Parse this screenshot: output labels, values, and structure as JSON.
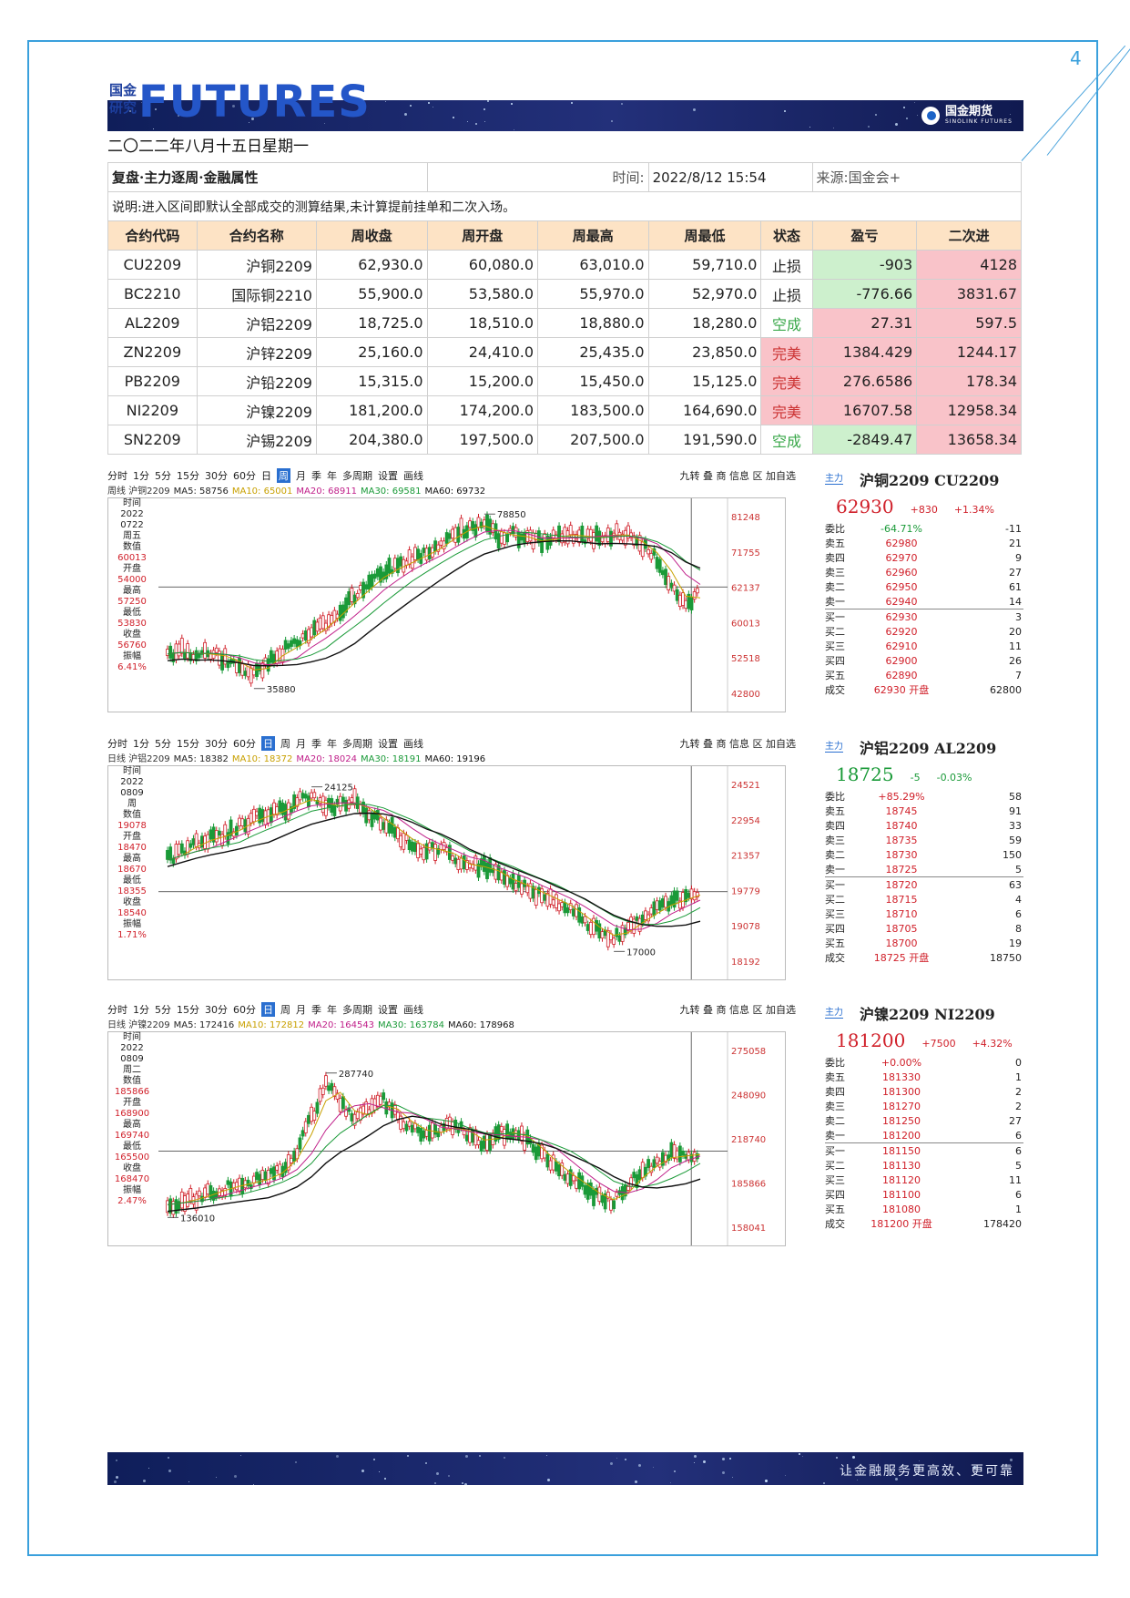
{
  "page_number": "4",
  "brand": {
    "cn_line1": "国金",
    "cn_line2": "研究",
    "en": "FUTURES",
    "logo_cn": "国金期货",
    "logo_en": "SINOLINK FUTURES"
  },
  "date": "二〇二二年八月十五日星期一",
  "review": {
    "title": "复盘·主力逐周·金融属性",
    "time_label": "时间:",
    "time_value": "2022/8/12 15:54",
    "source": "来源:国金会+",
    "note": "说明:进入区间即默认全部成交的测算结果,未计算提前挂单和二次入场。",
    "headers": [
      "合约代码",
      "合约名称",
      "周收盘",
      "周开盘",
      "周最高",
      "周最低",
      "状态",
      "盈亏",
      "二次进"
    ],
    "rows": [
      {
        "code": "CU2209",
        "name": "沪铜2209",
        "close": "62,930.0",
        "open": "60,080.0",
        "high": "63,010.0",
        "low": "59,710.0",
        "status": "止损",
        "pnl": "-903",
        "second": "4128"
      },
      {
        "code": "BC2210",
        "name": "国际铜2210",
        "close": "55,900.0",
        "open": "53,580.0",
        "high": "55,970.0",
        "low": "52,970.0",
        "status": "止损",
        "pnl": "-776.66",
        "second": "3831.67"
      },
      {
        "code": "AL2209",
        "name": "沪铝2209",
        "close": "18,725.0",
        "open": "18,510.0",
        "high": "18,880.0",
        "low": "18,280.0",
        "status": "空成",
        "pnl": "27.31",
        "second": "597.5"
      },
      {
        "code": "ZN2209",
        "name": "沪锌2209",
        "close": "25,160.0",
        "open": "24,410.0",
        "high": "25,435.0",
        "low": "23,850.0",
        "status": "完美",
        "pnl": "1384.429",
        "second": "1244.17"
      },
      {
        "code": "PB2209",
        "name": "沪铅2209",
        "close": "15,315.0",
        "open": "15,200.0",
        "high": "15,450.0",
        "low": "15,125.0",
        "status": "完美",
        "pnl": "276.6586",
        "second": "178.34"
      },
      {
        "code": "NI2209",
        "name": "沪镍2209",
        "close": "181,200.0",
        "open": "174,200.0",
        "high": "183,500.0",
        "low": "164,690.0",
        "status": "完美",
        "pnl": "16707.58",
        "second": "12958.34"
      },
      {
        "code": "SN2209",
        "name": "沪锡2209",
        "close": "204,380.0",
        "open": "197,500.0",
        "high": "207,500.0",
        "low": "191,590.0",
        "status": "空成",
        "pnl": "-2849.47",
        "second": "13658.34"
      }
    ]
  },
  "charts": [
    {
      "toolbar": [
        "分时",
        "1分",
        "5分",
        "15分",
        "30分",
        "60分",
        "日",
        "周",
        "月",
        "季",
        "年",
        "多周期",
        "设置",
        "画线"
      ],
      "selected_tab": "周",
      "toolbar_right": "九转 叠 商 信息 区 加自选",
      "ma_line": {
        "prefix": "周线 沪铜2209",
        "ma5": "MA5: 58756",
        "ma10": "MA10: 65001",
        "ma20": "MA20: 68911",
        "ma30": "MA30: 69581",
        "ma60": "MA60: 69732"
      },
      "side": [
        "时间",
        "2022",
        "0722",
        "周五",
        "数值",
        "60013",
        "开盘",
        "54000",
        "最高",
        "57250",
        "最低",
        "53830",
        "收盘",
        "56760",
        "振幅",
        "6.41%"
      ],
      "y_labels": [
        "81248",
        "71755",
        "62137",
        "60013",
        "52518",
        "42800"
      ],
      "high_label": "78850",
      "low_label": "35880",
      "quote": {
        "tag": "主力",
        "title": "沪铜2209 CU2209",
        "price": "62930",
        "change": "+830",
        "pct": "+1.34%",
        "rows": [
          [
            "委比",
            "-64.71%",
            "-11"
          ],
          [
            "卖五",
            "62980",
            "21"
          ],
          [
            "卖四",
            "62970",
            "9"
          ],
          [
            "卖三",
            "62960",
            "27"
          ],
          [
            "卖二",
            "62950",
            "61"
          ],
          [
            "卖一",
            "62940",
            "14"
          ],
          [
            "买一",
            "62930",
            "3"
          ],
          [
            "买二",
            "62920",
            "20"
          ],
          [
            "买三",
            "62910",
            "11"
          ],
          [
            "买四",
            "62900",
            "26"
          ],
          [
            "买五",
            "62890",
            "7"
          ],
          [
            "成交",
            "62930 开盘",
            "62800"
          ]
        ]
      },
      "chart_data": {
        "type": "candlestick",
        "title": "沪铜2209",
        "ylim": [
          42800,
          81248
        ],
        "high": 78850,
        "low": 35880,
        "last": 62930
      }
    },
    {
      "toolbar": [
        "分时",
        "1分",
        "5分",
        "15分",
        "30分",
        "60分",
        "日",
        "周",
        "月",
        "季",
        "年",
        "多周期",
        "设置",
        "画线"
      ],
      "selected_tab": "日",
      "toolbar_right": "九转 叠 商 信息 区 加自选",
      "ma_line": {
        "prefix": "日线 沪铝2209",
        "ma5": "MA5: 18382",
        "ma10": "MA10: 18372",
        "ma20": "MA20: 18024",
        "ma30": "MA30: 18191",
        "ma60": "MA60: 19196"
      },
      "side": [
        "时间",
        "2022",
        "0809",
        "周",
        "数值",
        "19078",
        "开盘",
        "18470",
        "最高",
        "18670",
        "最低",
        "18355",
        "收盘",
        "18540",
        "振幅",
        "1.71%"
      ],
      "y_labels": [
        "24521",
        "22954",
        "21357",
        "19779",
        "19078",
        "18192"
      ],
      "high_label": "24125",
      "low_label": "17000",
      "quote": {
        "tag": "主力",
        "title": "沪铝2209 AL2209",
        "price": "18725",
        "change": "-5",
        "pct": "-0.03%",
        "rows": [
          [
            "委比",
            "+85.29%",
            "58"
          ],
          [
            "卖五",
            "18745",
            "91"
          ],
          [
            "卖四",
            "18740",
            "33"
          ],
          [
            "卖三",
            "18735",
            "59"
          ],
          [
            "卖二",
            "18730",
            "150"
          ],
          [
            "卖一",
            "18725",
            "5"
          ],
          [
            "买一",
            "18720",
            "63"
          ],
          [
            "买二",
            "18715",
            "4"
          ],
          [
            "买三",
            "18710",
            "6"
          ],
          [
            "买四",
            "18705",
            "8"
          ],
          [
            "买五",
            "18700",
            "19"
          ],
          [
            "成交",
            "18725 开盘",
            "18750"
          ]
        ]
      },
      "chart_data": {
        "type": "candlestick",
        "title": "沪铝2209",
        "ylim": [
          18192,
          24521
        ],
        "high": 24125,
        "low": 17000,
        "last": 18725
      }
    },
    {
      "toolbar": [
        "分时",
        "1分",
        "5分",
        "15分",
        "30分",
        "60分",
        "日",
        "周",
        "月",
        "季",
        "年",
        "多周期",
        "设置",
        "画线"
      ],
      "selected_tab": "日",
      "toolbar_right": "九转 叠 商 信息 区 加自选",
      "ma_line": {
        "prefix": "日线 沪镍2209",
        "ma5": "MA5: 172416",
        "ma10": "MA10: 172812",
        "ma20": "MA20: 164543",
        "ma30": "MA30: 163784",
        "ma60": "MA60: 178968"
      },
      "side": [
        "时间",
        "2022",
        "0809",
        "周二",
        "数值",
        "185866",
        "开盘",
        "168900",
        "最高",
        "169740",
        "最低",
        "165500",
        "收盘",
        "168470",
        "振幅",
        "2.47%"
      ],
      "y_labels": [
        "275058",
        "248090",
        "218740",
        "185866",
        "158041"
      ],
      "high_label": "287740",
      "low_label": "136010",
      "quote": {
        "tag": "主力",
        "title": "沪镍2209 NI2209",
        "price": "181200",
        "change": "+7500",
        "pct": "+4.32%",
        "rows": [
          [
            "委比",
            "+0.00%",
            "0"
          ],
          [
            "卖五",
            "181330",
            "1"
          ],
          [
            "卖四",
            "181300",
            "2"
          ],
          [
            "卖三",
            "181270",
            "2"
          ],
          [
            "卖二",
            "181250",
            "27"
          ],
          [
            "卖一",
            "181200",
            "6"
          ],
          [
            "买一",
            "181150",
            "6"
          ],
          [
            "买二",
            "181130",
            "5"
          ],
          [
            "买三",
            "181120",
            "11"
          ],
          [
            "买四",
            "181100",
            "6"
          ],
          [
            "买五",
            "181080",
            "1"
          ],
          [
            "成交",
            "181200 开盘",
            "178420"
          ]
        ]
      },
      "chart_data": {
        "type": "candlestick",
        "title": "沪镍2209",
        "ylim": [
          158041,
          275058
        ],
        "high": 287740,
        "low": 136010,
        "last": 181200
      }
    }
  ],
  "footer": "让金融服务更高效、更可靠",
  "colors": {
    "frame": "#3aa0dc",
    "banner": "#1a2a6c",
    "header_bg": "#fde3c5",
    "green_cell": "#cdf0cd",
    "red_cell": "#f9c3c9"
  }
}
